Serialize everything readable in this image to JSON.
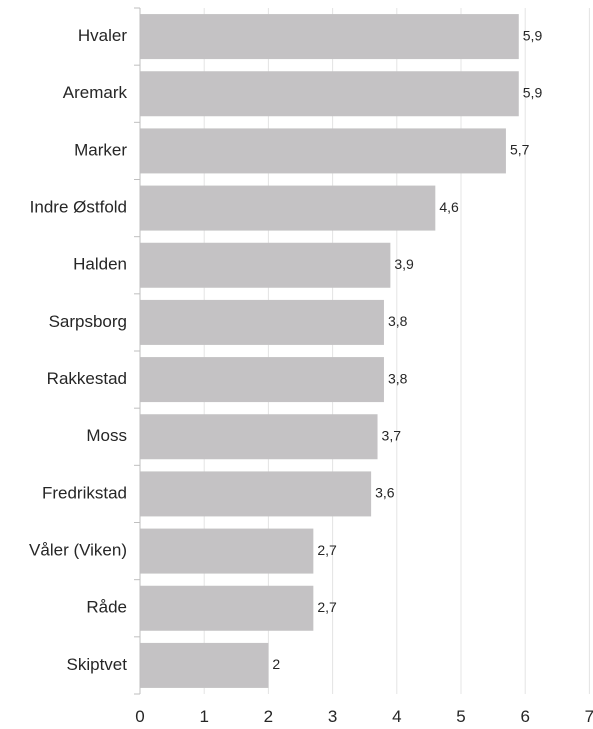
{
  "chart_data": {
    "type": "bar",
    "orientation": "horizontal",
    "categories": [
      "Hvaler",
      "Aremark",
      "Marker",
      "Indre Østfold",
      "Halden",
      "Sarpsborg",
      "Rakkestad",
      "Moss",
      "Fredrikstad",
      "Våler (Viken)",
      "Råde",
      "Skiptvet"
    ],
    "values": [
      5.9,
      5.9,
      5.7,
      4.6,
      3.9,
      3.8,
      3.8,
      3.7,
      3.6,
      2.7,
      2.7,
      2
    ],
    "value_labels": [
      "5,9",
      "5,9",
      "5,7",
      "4,6",
      "3,9",
      "3,8",
      "3,8",
      "3,7",
      "3,6",
      "2,7",
      "2,7",
      "2"
    ],
    "xticks": [
      0,
      1,
      2,
      3,
      4,
      5,
      6,
      7
    ],
    "xtick_labels": [
      "0",
      "1",
      "2",
      "3",
      "4",
      "5",
      "6",
      "7"
    ],
    "xlim": [
      0,
      7
    ],
    "grid": "vertical",
    "bar_color": "#c4c2c4",
    "grid_color": "#e4e4e4",
    "axis_color": "#bfbfbf",
    "title": "",
    "xlabel": "",
    "ylabel": ""
  }
}
